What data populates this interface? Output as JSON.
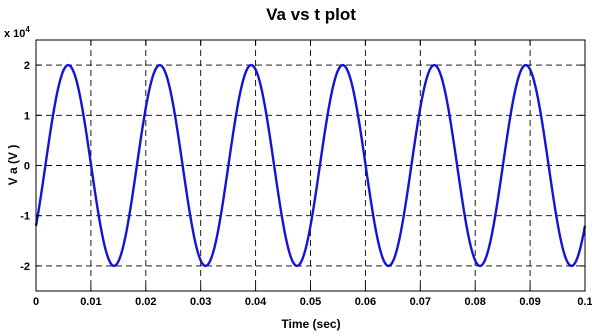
{
  "chart_data": {
    "type": "line",
    "title": "Va vs t plot",
    "xlabel": "Time (sec)",
    "ylabel": "V a  (V )",
    "y_multiplier_base": "x 10",
    "y_multiplier_exp": "4",
    "xlim": [
      0,
      0.1
    ],
    "ylim": [
      -25000,
      25000
    ],
    "x_ticks": [
      0,
      0.01,
      0.02,
      0.03,
      0.04,
      0.05,
      0.06,
      0.07,
      0.08,
      0.09,
      0.1
    ],
    "x_tick_labels": [
      "0",
      "0.01",
      "0.02",
      "0.03",
      "0.04",
      "0.05",
      "0.06",
      "0.07",
      "0.08",
      "0.09",
      "0.1"
    ],
    "y_ticks": [
      20000,
      10000,
      0,
      -10000,
      -20000
    ],
    "y_tick_labels": [
      "2",
      "1",
      "0",
      "-1",
      "-2"
    ],
    "grid": true,
    "series": [
      {
        "color": "#1414d6",
        "waveform": "sine",
        "amplitude": 20000,
        "frequency_hz": 60,
        "phase_deg": -36.9,
        "x_start": 0,
        "x_end": 0.1
      }
    ]
  }
}
